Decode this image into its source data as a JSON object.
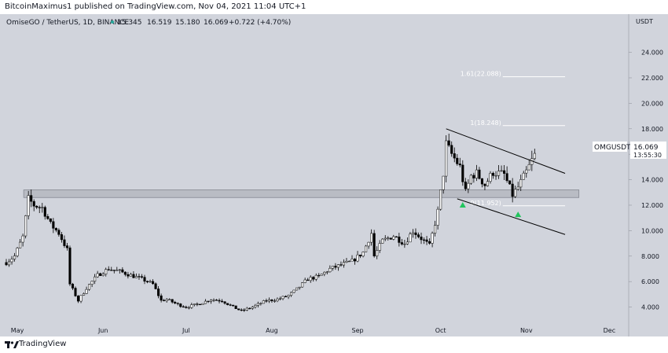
{
  "header": {
    "published": "BitcoinMaximus1 published on TradingView.com, Nov 04, 2021 11:04 UTC+1"
  },
  "chart": {
    "symbol_line": "OmiseGO / TetherUS, 1D, BINANCE",
    "ohlc": {
      "o": "15.345",
      "h": "16.519",
      "l": "15.180",
      "c": "16.069",
      "chg": "+0.722 (+4.70%)"
    },
    "price_label": "OMGUSDT",
    "last_price": "16.069",
    "countdown": "13:55:30",
    "currency": "USDT",
    "fib_labels": [
      "1.61(22.088)",
      "1(18.248)",
      "0(11.952)"
    ],
    "colors": {
      "background": "#d1d4dc",
      "up": "#ffffff",
      "down": "#000000",
      "zone": "#b5b8c0",
      "marker": "#22c55e"
    }
  },
  "footer": {
    "brand": "TradingView"
  },
  "chart_data": {
    "type": "candlestick",
    "title": "OmiseGO / TetherUS, 1D, BINANCE",
    "y_axis": {
      "label": "USDT",
      "ylim": [
        2.8,
        27.0
      ],
      "ticks": [
        "24.000",
        "22.000",
        "20.000",
        "18.000",
        "16.000",
        "14.000",
        "12.000",
        "10.000",
        "8.000",
        "6.000",
        "4.000"
      ]
    },
    "x_axis": {
      "ticks": [
        "May",
        "Jun",
        "Jul",
        "Aug",
        "Sep",
        "Oct",
        "Nov",
        "Dec"
      ]
    },
    "price_path": [
      [
        "2021-04-27",
        7.5
      ],
      [
        "2021-04-30",
        8.0
      ],
      [
        "2021-05-03",
        9.5
      ],
      [
        "2021-05-05",
        12.5
      ],
      [
        "2021-05-07",
        12.0
      ],
      [
        "2021-05-10",
        11.8
      ],
      [
        "2021-05-13",
        10.5
      ],
      [
        "2021-05-16",
        9.8
      ],
      [
        "2021-05-19",
        8.5
      ],
      [
        "2021-05-20",
        5.8
      ],
      [
        "2021-05-23",
        4.5
      ],
      [
        "2021-05-26",
        5.5
      ],
      [
        "2021-05-30",
        6.5
      ],
      [
        "2021-06-03",
        7.0
      ],
      [
        "2021-06-07",
        6.8
      ],
      [
        "2021-06-11",
        6.5
      ],
      [
        "2021-06-15",
        6.2
      ],
      [
        "2021-06-19",
        5.8
      ],
      [
        "2021-06-22",
        4.5
      ],
      [
        "2021-06-24",
        4.6
      ],
      [
        "2021-06-28",
        4.2
      ],
      [
        "2021-07-01",
        4.0
      ],
      [
        "2021-07-05",
        4.2
      ],
      [
        "2021-07-10",
        4.6
      ],
      [
        "2021-07-14",
        4.5
      ],
      [
        "2021-07-18",
        4.0
      ],
      [
        "2021-07-21",
        3.7
      ],
      [
        "2021-07-25",
        4.0
      ],
      [
        "2021-07-30",
        4.5
      ],
      [
        "2021-08-03",
        4.6
      ],
      [
        "2021-08-07",
        4.9
      ],
      [
        "2021-08-10",
        5.4
      ],
      [
        "2021-08-14",
        6.2
      ],
      [
        "2021-08-18",
        6.4
      ],
      [
        "2021-08-22",
        7.0
      ],
      [
        "2021-08-26",
        7.3
      ],
      [
        "2021-08-30",
        7.6
      ],
      [
        "2021-09-03",
        8.3
      ],
      [
        "2021-09-06",
        9.8
      ],
      [
        "2021-09-07",
        8.0
      ],
      [
        "2021-09-10",
        9.2
      ],
      [
        "2021-09-14",
        9.6
      ],
      [
        "2021-09-18",
        9.0
      ],
      [
        "2021-09-21",
        10.0
      ],
      [
        "2021-09-24",
        9.4
      ],
      [
        "2021-09-27",
        8.8
      ],
      [
        "2021-09-30",
        11.5
      ],
      [
        "2021-10-02",
        14.5
      ],
      [
        "2021-10-03",
        16.8
      ],
      [
        "2021-10-05",
        16.0
      ],
      [
        "2021-10-08",
        15.0
      ],
      [
        "2021-10-10",
        13.0
      ],
      [
        "2021-10-12",
        14.3
      ],
      [
        "2021-10-14",
        14.5
      ],
      [
        "2021-10-17",
        13.6
      ],
      [
        "2021-10-20",
        14.6
      ],
      [
        "2021-10-24",
        14.4
      ],
      [
        "2021-10-27",
        12.8
      ],
      [
        "2021-10-29",
        13.4
      ],
      [
        "2021-11-01",
        14.6
      ],
      [
        "2021-11-03",
        15.5
      ],
      [
        "2021-11-04",
        16.069
      ]
    ],
    "horizontal_zone": {
      "from": 12.6,
      "to": 13.2,
      "x_start": "2021-05-05",
      "x_end": "2021-11-20"
    },
    "descending_channel": {
      "upper": [
        [
          "2021-10-03",
          18.0
        ],
        [
          "2021-11-15",
          14.5
        ]
      ],
      "lower": [
        [
          "2021-10-07",
          12.5
        ],
        [
          "2021-11-15",
          9.7
        ]
      ]
    },
    "fib_levels": [
      {
        "label": "1.61(22.088)",
        "value": 22.088
      },
      {
        "label": "1(18.248)",
        "value": 18.248
      },
      {
        "label": "0(11.952)",
        "value": 11.952
      }
    ],
    "markers": [
      {
        "type": "triangle-up",
        "date": "2021-10-09",
        "price": 12.0
      },
      {
        "type": "triangle-up",
        "date": "2021-10-29",
        "price": 11.25
      }
    ]
  }
}
